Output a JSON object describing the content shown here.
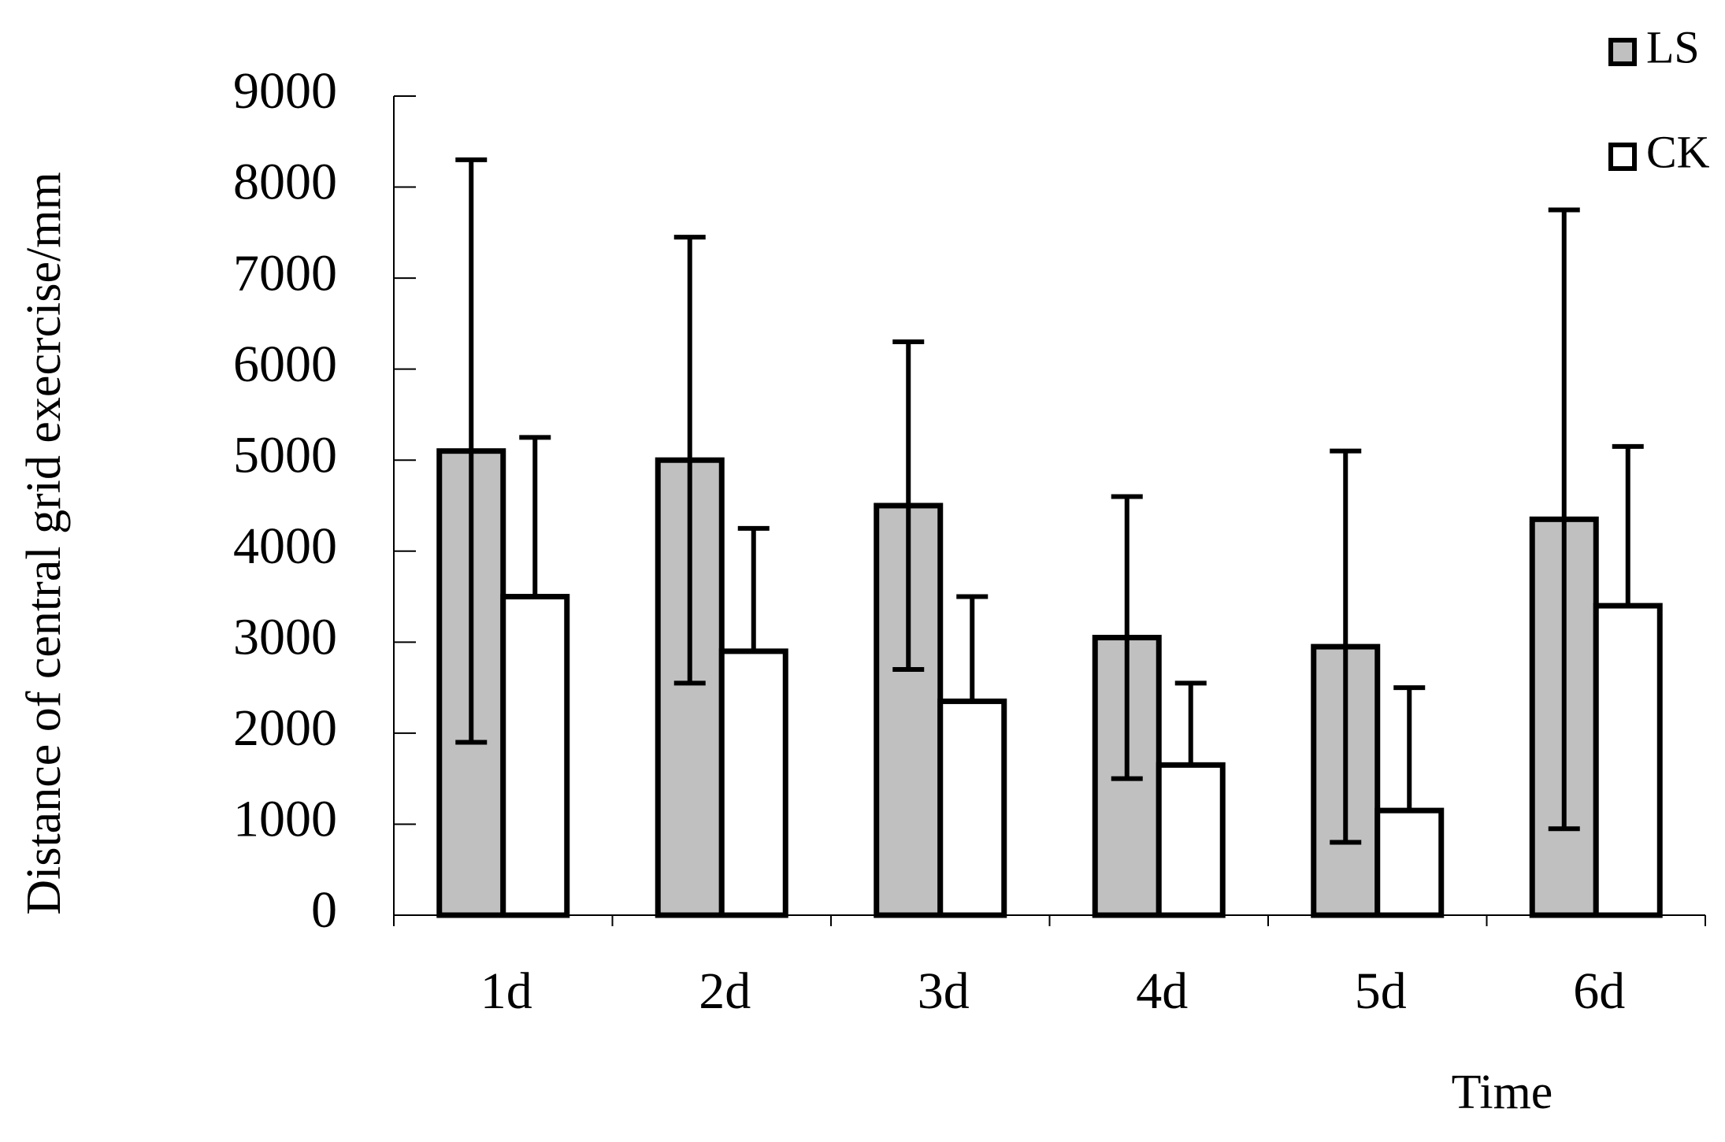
{
  "chart_data": {
    "type": "bar",
    "y_label": "Distance of central grid execrcise/mm",
    "x_label": "Time",
    "categories": [
      "1d",
      "2d",
      "3d",
      "4d",
      "5d",
      "6d"
    ],
    "series": [
      {
        "name": "LS",
        "color": "#c0c0c0",
        "values": [
          5100,
          5000,
          4500,
          3050,
          2950,
          4350
        ],
        "error": [
          3200,
          2450,
          1800,
          1550,
          2150,
          3400
        ],
        "error_sides": "both"
      },
      {
        "name": "CK",
        "color": "#ffffff",
        "values": [
          3500,
          2900,
          2350,
          1650,
          1150,
          3400
        ],
        "error": [
          1750,
          1350,
          1150,
          900,
          1350,
          1750
        ],
        "error_sides": "up"
      }
    ],
    "ylim": [
      0,
      9000
    ],
    "yticks": [
      0,
      1000,
      2000,
      3000,
      4000,
      5000,
      6000,
      7000,
      8000,
      9000
    ],
    "legend": "top-right"
  }
}
